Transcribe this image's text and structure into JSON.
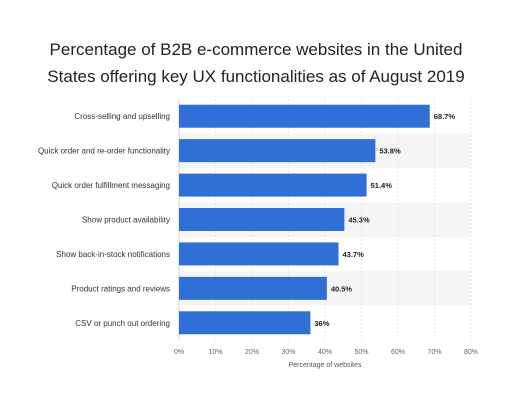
{
  "chart_data": {
    "type": "bar",
    "orientation": "horizontal",
    "title_lines": [
      "Percentage of B2B e-commerce websites in the United",
      "States offering key UX functionalities as of August 2019"
    ],
    "categories": [
      "Cross-selling and upselling",
      "Quick order and re-order functionality",
      "Quick order fulfillment messaging",
      "Show product availability",
      "Show back-in-stock notifications",
      "Product ratings and reviews",
      "CSV or punch out ordering"
    ],
    "values": [
      68.7,
      53.8,
      51.4,
      45.3,
      43.7,
      40.5,
      36
    ],
    "value_labels": [
      "68.7%",
      "53.8%",
      "51.4%",
      "45.3%",
      "43.7%",
      "40.5%",
      "36%"
    ],
    "xlim": [
      0,
      80
    ],
    "x_ticks": [
      0,
      10,
      20,
      30,
      40,
      50,
      60,
      70,
      80
    ],
    "x_tick_labels": [
      "0%",
      "10%",
      "20%",
      "30%",
      "40%",
      "50%",
      "60%",
      "70%",
      "80%"
    ],
    "xlabel": "Percentage of websites",
    "ylabel": "",
    "grid": true,
    "bar_color": "#2f6fd6",
    "band_color": "#f5f5f5"
  }
}
